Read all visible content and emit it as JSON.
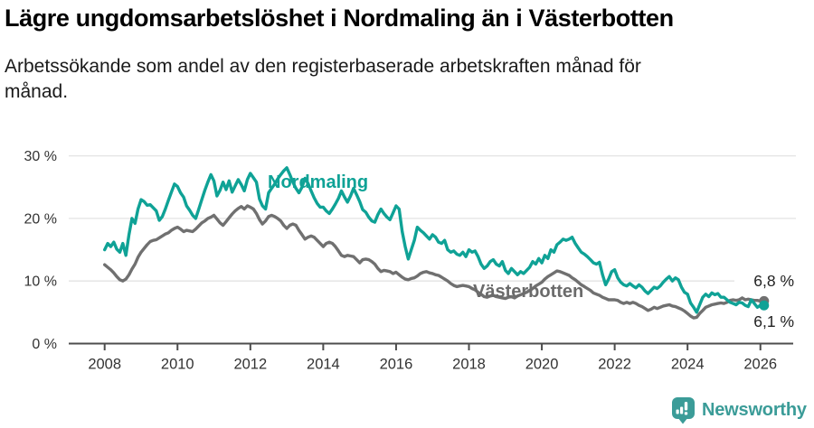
{
  "header": {
    "title": "Lägre ungdomsarbetslöshet i Nordmaling än i Västerbotten",
    "subtitle_lines": [
      "Arbetssökande som andel av den registerbaserade arbetskraften månad för",
      "månad."
    ]
  },
  "chart_data": {
    "type": "line",
    "title": "Lägre ungdomsarbetslöshet i Nordmaling än i Västerbotten",
    "subtitle": "Arbetssökande som andel av den registerbaserade arbetskraften månad för månad.",
    "frequency": "monthly",
    "x_start": "2008-01",
    "x_end": "2026-01",
    "ylim": [
      0,
      30
    ],
    "grid": "horizontal",
    "y_ticks": [
      {
        "value": 0,
        "label": "0 %"
      },
      {
        "value": 10,
        "label": "10 %"
      },
      {
        "value": 20,
        "label": "20 %"
      },
      {
        "value": 30,
        "label": "30 %"
      }
    ],
    "x_ticks": [
      {
        "year": 2008,
        "label": "2008"
      },
      {
        "year": 2010,
        "label": "2010"
      },
      {
        "year": 2012,
        "label": "2012"
      },
      {
        "year": 2014,
        "label": "2014"
      },
      {
        "year": 2016,
        "label": "2016"
      },
      {
        "year": 2018,
        "label": "2018"
      },
      {
        "year": 2020,
        "label": "2020"
      },
      {
        "year": 2022,
        "label": "2022"
      },
      {
        "year": 2024,
        "label": "2024"
      },
      {
        "year": 2026,
        "label": "2026"
      }
    ],
    "series": [
      {
        "name": "Nordmaling",
        "color": "#0fa296",
        "end_value": 6.1,
        "end_label": "6,1 %",
        "values": [
          15.0,
          16.0,
          15.5,
          16.2,
          15.1,
          14.6,
          16.0,
          14.1,
          17.4,
          20.0,
          19.2,
          21.5,
          23.0,
          22.7,
          22.1,
          22.2,
          21.7,
          21.2,
          19.7,
          20.3,
          21.5,
          22.9,
          24.2,
          25.5,
          25.1,
          24.1,
          23.4,
          22.0,
          21.3,
          20.5,
          20.0,
          21.5,
          23.0,
          24.5,
          25.8,
          27.0,
          26.0,
          23.6,
          24.5,
          25.8,
          24.6,
          26.0,
          24.2,
          25.2,
          26.2,
          25.4,
          24.4,
          26.2,
          27.2,
          26.5,
          25.8,
          23.1,
          22.0,
          21.5,
          24.1,
          24.8,
          25.5,
          26.3,
          27.0,
          27.6,
          28.1,
          27.0,
          25.8,
          24.8,
          24.1,
          25.0,
          26.4,
          25.6,
          24.4,
          23.3,
          22.4,
          21.8,
          21.8,
          21.2,
          20.8,
          21.5,
          22.3,
          23.2,
          24.4,
          23.4,
          22.6,
          23.6,
          24.8,
          23.8,
          22.7,
          21.4,
          21.0,
          20.2,
          19.6,
          19.4,
          20.6,
          21.5,
          20.8,
          20.2,
          19.8,
          20.9,
          22.0,
          21.5,
          17.9,
          15.5,
          13.5,
          15.0,
          16.5,
          18.6,
          18.1,
          17.7,
          17.2,
          16.7,
          17.4,
          17.0,
          16.2,
          16.0,
          16.5,
          15.0,
          14.6,
          14.8,
          14.3,
          14.1,
          14.6,
          13.9,
          15.0,
          14.6,
          14.8,
          13.9,
          12.7,
          12.0,
          12.4,
          13.1,
          13.4,
          12.7,
          12.4,
          13.1,
          11.7,
          11.2,
          12.0,
          11.5,
          11.0,
          11.5,
          11.2,
          11.7,
          12.2,
          13.1,
          12.7,
          13.6,
          12.9,
          14.1,
          13.6,
          15.0,
          14.6,
          15.8,
          16.2,
          16.7,
          16.5,
          16.7,
          17.0,
          16.0,
          15.3,
          14.6,
          14.3,
          13.9,
          13.4,
          12.9,
          12.7,
          13.0,
          11.0,
          9.4,
          10.3,
          11.5,
          11.8,
          10.5,
          9.8,
          9.4,
          9.2,
          9.6,
          9.2,
          8.9,
          9.4,
          9.0,
          8.4,
          8.0,
          8.5,
          9.0,
          8.8,
          9.2,
          9.8,
          10.3,
          10.7,
          10.0,
          10.5,
          10.2,
          9.0,
          8.2,
          7.9,
          6.5,
          5.8,
          5.0,
          6.2,
          7.4,
          7.9,
          7.5,
          8.1,
          7.8,
          8.0,
          7.4,
          7.4,
          7.0,
          6.6,
          6.4,
          6.2,
          6.6,
          6.5,
          6.1,
          5.9,
          7.0,
          6.4,
          5.8,
          6.1
        ]
      },
      {
        "name": "Västerbotten",
        "color": "#707070",
        "end_value": 6.8,
        "end_label": "6,8 %",
        "values": [
          12.6,
          12.2,
          11.8,
          11.3,
          10.7,
          10.2,
          10.0,
          10.3,
          11.0,
          11.9,
          12.7,
          13.8,
          14.6,
          15.2,
          15.8,
          16.3,
          16.5,
          16.6,
          16.9,
          17.2,
          17.5,
          17.7,
          18.1,
          18.4,
          18.6,
          18.3,
          17.9,
          18.1,
          18.0,
          17.9,
          18.3,
          18.8,
          19.3,
          19.6,
          20.0,
          20.2,
          20.5,
          19.9,
          19.3,
          18.9,
          19.5,
          20.1,
          20.7,
          21.2,
          21.6,
          21.9,
          21.5,
          22.0,
          21.8,
          21.5,
          20.8,
          19.8,
          19.1,
          19.6,
          20.3,
          20.5,
          20.3,
          20.0,
          19.6,
          18.9,
          18.4,
          18.9,
          19.1,
          18.9,
          18.1,
          17.4,
          16.7,
          17.0,
          17.2,
          17.0,
          16.5,
          16.0,
          15.5,
          16.0,
          16.2,
          16.0,
          15.5,
          14.8,
          14.1,
          13.9,
          14.1,
          14.0,
          13.9,
          13.4,
          12.9,
          13.4,
          13.5,
          13.4,
          13.1,
          12.7,
          12.0,
          11.5,
          11.7,
          11.6,
          11.5,
          11.2,
          11.4,
          11.0,
          10.6,
          10.3,
          10.2,
          10.4,
          10.5,
          10.8,
          11.2,
          11.4,
          11.5,
          11.3,
          11.2,
          11.0,
          10.9,
          10.6,
          10.3,
          10.0,
          9.6,
          9.3,
          9.1,
          9.2,
          9.3,
          9.2,
          9.1,
          8.8,
          8.6,
          8.2,
          7.9,
          7.5,
          7.4,
          7.6,
          7.7,
          7.5,
          7.4,
          7.3,
          7.2,
          7.4,
          7.5,
          7.3,
          7.6,
          7.8,
          8.0,
          8.2,
          8.5,
          8.8,
          9.2,
          9.5,
          9.8,
          10.3,
          10.7,
          11.0,
          11.3,
          11.6,
          11.5,
          11.3,
          11.1,
          10.9,
          10.5,
          10.2,
          9.8,
          9.4,
          9.1,
          8.8,
          8.5,
          8.1,
          7.9,
          7.7,
          7.4,
          7.2,
          7.0,
          7.0,
          7.0,
          6.9,
          6.6,
          6.4,
          6.6,
          6.4,
          6.6,
          6.4,
          6.1,
          5.9,
          5.6,
          5.3,
          5.5,
          5.8,
          5.6,
          5.8,
          6.0,
          6.1,
          6.2,
          6.0,
          5.9,
          5.7,
          5.5,
          5.2,
          4.8,
          4.4,
          4.1,
          4.2,
          4.8,
          5.3,
          5.8,
          6.0,
          6.2,
          6.3,
          6.4,
          6.5,
          6.4,
          6.6,
          6.9,
          7.0,
          6.9,
          7.0,
          7.3,
          7.0,
          7.1,
          7.0,
          6.9,
          6.9,
          6.8
        ]
      }
    ],
    "colors": {
      "grid": "#e3e3e3",
      "axis": "#4d4d4d",
      "tick_text": "#333333",
      "end_label_text": "#222222",
      "vasterbotten_label": "#6b6b6b"
    }
  },
  "footer": {
    "brand": "Newsworthy",
    "brand_color": "#3b9c98",
    "logo_icon": "bar-chart-speech-bubble"
  }
}
